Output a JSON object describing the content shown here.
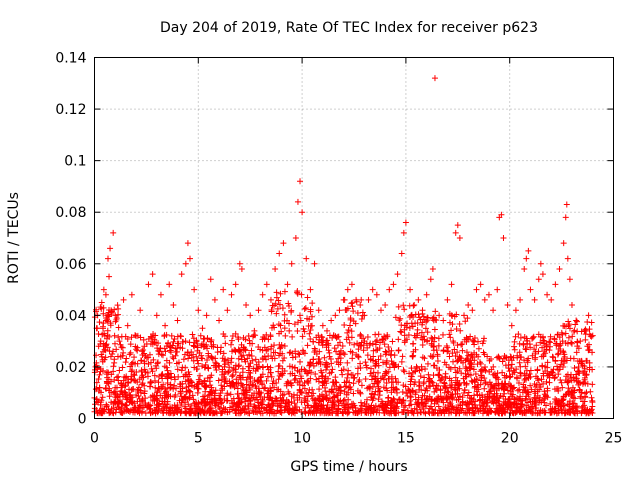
{
  "chart_data": {
    "type": "scatter",
    "title": "Day 204 of 2019, Rate Of TEC Index for receiver p623",
    "xlabel": "GPS time / hours",
    "ylabel": "ROTI / TECUs",
    "xlim": [
      0,
      25
    ],
    "ylim": [
      0,
      0.14
    ],
    "xticks": [
      0,
      5,
      10,
      15,
      20,
      25
    ],
    "xtick_labels": [
      "0",
      "5",
      "10",
      "15",
      "20",
      "25"
    ],
    "yticks": [
      0,
      0.02,
      0.04,
      0.06,
      0.08,
      0.1,
      0.12,
      0.14
    ],
    "ytick_labels": [
      "0",
      "0.02",
      "0.04",
      "0.06",
      "0.08",
      "0.1",
      "0.12",
      "0.14"
    ],
    "grid": true,
    "marker": "+",
    "color": "#ff0000",
    "series": [
      {
        "name": "ROTI",
        "points": [
          [
            0.0,
            0.008
          ],
          [
            0.05,
            0.02
          ],
          [
            0.1,
            0.035
          ],
          [
            0.15,
            0.04
          ],
          [
            0.2,
            0.028
          ],
          [
            0.25,
            0.012
          ],
          [
            0.3,
            0.03
          ],
          [
            0.35,
            0.045
          ],
          [
            0.4,
            0.022
          ],
          [
            0.45,
            0.05
          ],
          [
            0.5,
            0.032
          ],
          [
            0.55,
            0.048
          ],
          [
            0.6,
            0.018
          ],
          [
            0.65,
            0.062
          ],
          [
            0.7,
            0.055
          ],
          [
            0.75,
            0.066
          ],
          [
            0.8,
            0.042
          ],
          [
            0.85,
            0.025
          ],
          [
            0.9,
            0.072
          ],
          [
            0.95,
            0.015
          ],
          [
            1.0,
            0.04
          ],
          [
            1.2,
            0.03
          ],
          [
            1.4,
            0.046
          ],
          [
            1.6,
            0.036
          ],
          [
            1.8,
            0.048
          ],
          [
            2.0,
            0.032
          ],
          [
            2.2,
            0.042
          ],
          [
            2.4,
            0.028
          ],
          [
            2.6,
            0.052
          ],
          [
            2.8,
            0.056
          ],
          [
            3.0,
            0.04
          ],
          [
            3.2,
            0.048
          ],
          [
            3.4,
            0.036
          ],
          [
            3.6,
            0.052
          ],
          [
            3.8,
            0.044
          ],
          [
            4.0,
            0.038
          ],
          [
            4.2,
            0.056
          ],
          [
            4.4,
            0.06
          ],
          [
            4.5,
            0.068
          ],
          [
            4.6,
            0.062
          ],
          [
            4.8,
            0.05
          ],
          [
            5.0,
            0.042
          ],
          [
            5.2,
            0.035
          ],
          [
            5.4,
            0.04
          ],
          [
            5.6,
            0.054
          ],
          [
            5.8,
            0.046
          ],
          [
            6.0,
            0.038
          ],
          [
            6.2,
            0.05
          ],
          [
            6.4,
            0.042
          ],
          [
            6.6,
            0.048
          ],
          [
            6.8,
            0.052
          ],
          [
            7.0,
            0.06
          ],
          [
            7.1,
            0.058
          ],
          [
            7.3,
            0.044
          ],
          [
            7.5,
            0.04
          ],
          [
            7.7,
            0.034
          ],
          [
            7.9,
            0.042
          ],
          [
            8.1,
            0.048
          ],
          [
            8.3,
            0.052
          ],
          [
            8.5,
            0.046
          ],
          [
            8.7,
            0.058
          ],
          [
            8.9,
            0.064
          ],
          [
            9.1,
            0.068
          ],
          [
            9.3,
            0.052
          ],
          [
            9.5,
            0.06
          ],
          [
            9.7,
            0.07
          ],
          [
            9.8,
            0.084
          ],
          [
            9.9,
            0.092
          ],
          [
            10.0,
            0.08
          ],
          [
            10.2,
            0.062
          ],
          [
            10.4,
            0.05
          ],
          [
            10.6,
            0.06
          ],
          [
            10.8,
            0.042
          ],
          [
            11.0,
            0.036
          ],
          [
            11.2,
            0.034
          ],
          [
            11.4,
            0.038
          ],
          [
            11.6,
            0.04
          ],
          [
            11.8,
            0.042
          ],
          [
            12.0,
            0.046
          ],
          [
            12.2,
            0.05
          ],
          [
            12.4,
            0.052
          ],
          [
            12.6,
            0.046
          ],
          [
            12.8,
            0.044
          ],
          [
            13.0,
            0.04
          ],
          [
            13.2,
            0.046
          ],
          [
            13.4,
            0.05
          ],
          [
            13.6,
            0.048
          ],
          [
            13.8,
            0.042
          ],
          [
            14.0,
            0.044
          ],
          [
            14.2,
            0.05
          ],
          [
            14.4,
            0.052
          ],
          [
            14.6,
            0.056
          ],
          [
            14.8,
            0.064
          ],
          [
            14.9,
            0.072
          ],
          [
            15.0,
            0.076
          ],
          [
            15.2,
            0.05
          ],
          [
            15.4,
            0.044
          ],
          [
            15.6,
            0.046
          ],
          [
            15.8,
            0.042
          ],
          [
            16.0,
            0.048
          ],
          [
            16.2,
            0.054
          ],
          [
            16.3,
            0.058
          ],
          [
            16.4,
            0.132
          ],
          [
            16.6,
            0.04
          ],
          [
            16.8,
            0.038
          ],
          [
            17.0,
            0.046
          ],
          [
            17.2,
            0.052
          ],
          [
            17.4,
            0.072
          ],
          [
            17.5,
            0.075
          ],
          [
            17.6,
            0.07
          ],
          [
            17.8,
            0.04
          ],
          [
            18.0,
            0.044
          ],
          [
            18.2,
            0.042
          ],
          [
            18.4,
            0.05
          ],
          [
            18.6,
            0.052
          ],
          [
            18.8,
            0.046
          ],
          [
            19.0,
            0.048
          ],
          [
            19.2,
            0.042
          ],
          [
            19.4,
            0.05
          ],
          [
            19.5,
            0.078
          ],
          [
            19.6,
            0.079
          ],
          [
            19.7,
            0.07
          ],
          [
            19.9,
            0.044
          ],
          [
            20.1,
            0.036
          ],
          [
            20.3,
            0.042
          ],
          [
            20.5,
            0.046
          ],
          [
            20.7,
            0.058
          ],
          [
            20.8,
            0.062
          ],
          [
            20.9,
            0.065
          ],
          [
            21.0,
            0.05
          ],
          [
            21.2,
            0.046
          ],
          [
            21.4,
            0.054
          ],
          [
            21.5,
            0.06
          ],
          [
            21.6,
            0.056
          ],
          [
            21.8,
            0.048
          ],
          [
            22.0,
            0.046
          ],
          [
            22.2,
            0.052
          ],
          [
            22.4,
            0.058
          ],
          [
            22.6,
            0.068
          ],
          [
            22.7,
            0.078
          ],
          [
            22.75,
            0.083
          ],
          [
            22.8,
            0.062
          ],
          [
            22.9,
            0.054
          ],
          [
            23.0,
            0.044
          ],
          [
            23.2,
            0.038
          ],
          [
            23.4,
            0.03
          ],
          [
            23.6,
            0.034
          ],
          [
            23.8,
            0.04
          ],
          [
            23.9,
            0.032
          ]
        ]
      }
    ]
  }
}
